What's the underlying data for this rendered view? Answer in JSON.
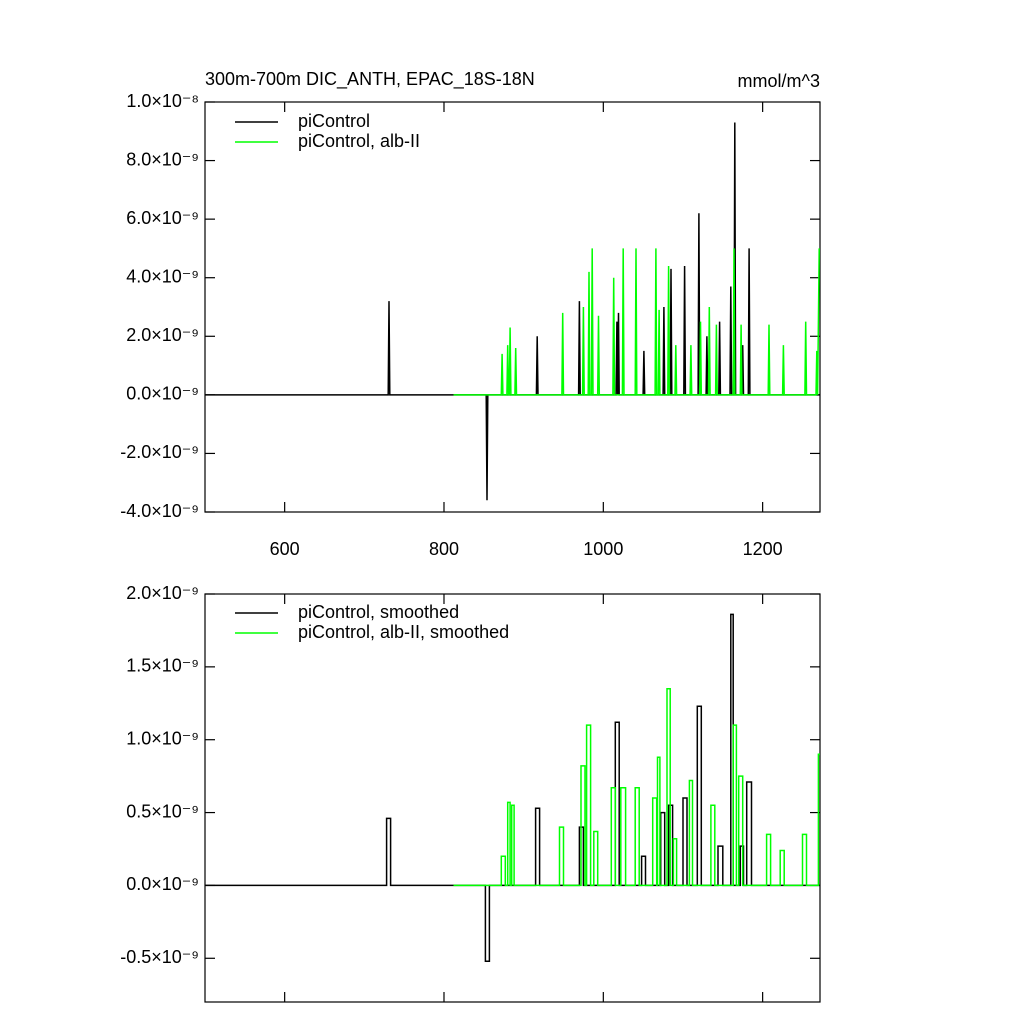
{
  "chart_data": [
    {
      "type": "line",
      "title": "300m-700m DIC_ANTH, EPAC_18S-18N",
      "units": "mmol/m^3",
      "xlim": [
        500,
        1272
      ],
      "xticks": [
        600,
        800,
        1000,
        1200
      ],
      "xtick_labels": true,
      "ylim": [
        -4e-09,
        1e-08
      ],
      "yticks": [
        {
          "value": 1e-08,
          "label": "1.0×10⁻⁸"
        },
        {
          "value": 8e-09,
          "label": "8.0×10⁻⁹"
        },
        {
          "value": 6e-09,
          "label": "6.0×10⁻⁹"
        },
        {
          "value": 4e-09,
          "label": "4.0×10⁻⁹"
        },
        {
          "value": 2e-09,
          "label": "2.0×10⁻⁹"
        },
        {
          "value": 0,
          "label": "0.0×10⁻⁹"
        },
        {
          "value": -2e-09,
          "label": "-2.0×10⁻⁹"
        },
        {
          "value": -4e-09,
          "label": "-4.0×10⁻⁹"
        }
      ],
      "series": [
        {
          "name": "piControl",
          "color": "#000000",
          "x": [
            500,
            730,
            731,
            732,
            853,
            854,
            855,
            916,
            917,
            918,
            969,
            970,
            971,
            1016,
            1017,
            1018,
            1019,
            1020,
            1050,
            1051,
            1052,
            1075,
            1076,
            1077,
            1084,
            1085,
            1086,
            1101,
            1102,
            1103,
            1119,
            1120,
            1121,
            1129,
            1130,
            1131,
            1145,
            1146,
            1147,
            1159,
            1160,
            1161,
            1164,
            1165,
            1166,
            1174,
            1175,
            1176,
            1182,
            1183,
            1184,
            1272
          ],
          "values": [
            0,
            0,
            3.2e-09,
            0,
            0,
            -3.6e-09,
            0,
            0,
            2e-09,
            0,
            0,
            3.2e-09,
            0,
            0,
            2.5e-09,
            0,
            2.8e-09,
            0,
            0,
            1.5e-09,
            0,
            0,
            3e-09,
            0,
            0,
            4.3e-09,
            0,
            0,
            4.4e-09,
            0,
            0,
            6.2e-09,
            0,
            0,
            2e-09,
            0,
            0,
            2.5e-09,
            0,
            0,
            3.7e-09,
            0,
            0,
            9.3e-09,
            0,
            0,
            1.7e-09,
            0,
            0,
            5e-09,
            0,
            0
          ]
        },
        {
          "name": "piControl, alb-II",
          "color": "#00ff00",
          "x": [
            812,
            872,
            873,
            874,
            879,
            880,
            881,
            882,
            883,
            884,
            889,
            890,
            891,
            948,
            949,
            950,
            974,
            975,
            976,
            981,
            982,
            983,
            985,
            986,
            987,
            993,
            994,
            995,
            1012,
            1013,
            1014,
            1024,
            1025,
            1026,
            1040,
            1041,
            1042,
            1065,
            1066,
            1067,
            1069,
            1070,
            1071,
            1081,
            1082,
            1083,
            1090,
            1091,
            1092,
            1109,
            1110,
            1111,
            1121,
            1122,
            1123,
            1132,
            1133,
            1134,
            1141,
            1142,
            1143,
            1163,
            1164,
            1165,
            1172,
            1173,
            1174,
            1207,
            1208,
            1209,
            1225,
            1226,
            1227,
            1253,
            1254,
            1255,
            1267,
            1268,
            1269,
            1271
          ],
          "values": [
            0,
            0,
            1.4e-09,
            0,
            0,
            1.7e-09,
            0,
            0,
            2.3e-09,
            0,
            0,
            1.6e-09,
            0,
            0,
            2.8e-09,
            0,
            0,
            3e-09,
            0,
            0,
            4.2e-09,
            0,
            0,
            5e-09,
            0,
            0,
            2.7e-09,
            0,
            0,
            4e-09,
            0,
            0,
            5e-09,
            0,
            0,
            5e-09,
            0,
            0,
            5e-09,
            0,
            0,
            2.9e-09,
            0,
            0,
            4.4e-09,
            0,
            0,
            1.7e-09,
            0,
            0,
            1.7e-09,
            0,
            0,
            2.5e-09,
            0,
            0,
            3e-09,
            0,
            0,
            2.4e-09,
            0,
            0,
            5e-09,
            0,
            0,
            2.4e-09,
            0,
            0,
            2.4e-09,
            0,
            0,
            1.7e-09,
            0,
            0,
            2.5e-09,
            0,
            0,
            1.5e-09,
            0,
            5e-09
          ]
        }
      ]
    },
    {
      "type": "line",
      "xlim": [
        500,
        1272
      ],
      "xticks": [
        600,
        800,
        1000,
        1200
      ],
      "xtick_labels": false,
      "ylim": [
        -8e-10,
        2e-09
      ],
      "yticks": [
        {
          "value": 2e-09,
          "label": "2.0×10⁻⁹"
        },
        {
          "value": 1.5e-09,
          "label": "1.5×10⁻⁹"
        },
        {
          "value": 1e-09,
          "label": "1.0×10⁻⁹"
        },
        {
          "value": 5e-10,
          "label": "0.5×10⁻⁹"
        },
        {
          "value": 0,
          "label": "0.0×10⁻⁹"
        },
        {
          "value": -5e-10,
          "label": "-0.5×10⁻⁹"
        }
      ],
      "series": [
        {
          "name": "piControl, smoothed",
          "color": "#000000",
          "x": [
            500,
            728,
            728,
            733,
            733,
            852,
            852,
            857,
            857,
            915,
            915,
            920,
            920,
            970,
            970,
            975,
            975,
            1015,
            1015,
            1020,
            1020,
            1048,
            1048,
            1053,
            1053,
            1072,
            1072,
            1077,
            1077,
            1082,
            1082,
            1087,
            1087,
            1100,
            1100,
            1105,
            1105,
            1118,
            1118,
            1123,
            1123,
            1144,
            1144,
            1150,
            1150,
            1160,
            1160,
            1163,
            1163,
            1172,
            1172,
            1176,
            1176,
            1180,
            1180,
            1186,
            1186,
            1272
          ],
          "values": [
            0,
            0,
            4.6e-10,
            4.6e-10,
            0,
            0,
            -5.2e-10,
            -5.2e-10,
            0,
            0,
            5.3e-10,
            5.3e-10,
            0,
            0,
            4e-10,
            4e-10,
            0,
            0,
            1.12e-09,
            1.12e-09,
            0,
            0,
            2e-10,
            2e-10,
            0,
            0,
            5e-10,
            5e-10,
            0,
            0,
            5.5e-10,
            5.5e-10,
            0,
            0,
            6e-10,
            6e-10,
            0,
            0,
            1.23e-09,
            1.23e-09,
            0,
            0,
            2.7e-10,
            2.7e-10,
            0,
            0,
            1.86e-09,
            1.86e-09,
            0,
            0,
            2.7e-10,
            2.7e-10,
            0,
            0,
            7.1e-10,
            7.1e-10,
            0,
            0
          ]
        },
        {
          "name": "piControl, alb-II, smoothed",
          "color": "#00ff00",
          "x": [
            812,
            872,
            872,
            877,
            877,
            880,
            880,
            883,
            883,
            885,
            885,
            888,
            888,
            945,
            945,
            950,
            950,
            972,
            972,
            977,
            977,
            979,
            979,
            984,
            984,
            988,
            988,
            993,
            993,
            1010,
            1010,
            1015,
            1015,
            1022,
            1022,
            1028,
            1028,
            1040,
            1040,
            1045,
            1045,
            1062,
            1062,
            1067,
            1067,
            1068,
            1068,
            1071,
            1071,
            1080,
            1080,
            1084,
            1084,
            1088,
            1088,
            1092,
            1092,
            1108,
            1108,
            1112,
            1112,
            1135,
            1135,
            1140,
            1140,
            1163,
            1163,
            1167,
            1167,
            1170,
            1170,
            1175,
            1175,
            1205,
            1205,
            1210,
            1210,
            1222,
            1222,
            1227,
            1227,
            1250,
            1250,
            1255,
            1255,
            1270,
            1270,
            1272
          ],
          "values": [
            0,
            0,
            2e-10,
            2e-10,
            0,
            0,
            5.7e-10,
            5.7e-10,
            0,
            0,
            5.5e-10,
            5.5e-10,
            0,
            0,
            4e-10,
            4e-10,
            0,
            0,
            8.2e-10,
            8.2e-10,
            0,
            0,
            1.1e-09,
            1.1e-09,
            0,
            0,
            3.7e-10,
            3.7e-10,
            0,
            0,
            6.7e-10,
            6.7e-10,
            0,
            0,
            6.7e-10,
            6.7e-10,
            0,
            0,
            6.7e-10,
            6.7e-10,
            0,
            0,
            6e-10,
            6e-10,
            0,
            0,
            8.8e-10,
            8.8e-10,
            0,
            0,
            1.35e-09,
            1.35e-09,
            0,
            0,
            3.2e-10,
            3.2e-10,
            0,
            0,
            7.2e-10,
            7.2e-10,
            0,
            0,
            5.5e-10,
            5.5e-10,
            0,
            0,
            1.1e-09,
            1.1e-09,
            0,
            0,
            7.5e-10,
            7.5e-10,
            0,
            0,
            3.5e-10,
            3.5e-10,
            0,
            0,
            2.4e-10,
            2.4e-10,
            0,
            0,
            3.5e-10,
            3.5e-10,
            0,
            0,
            9e-10,
            9e-10
          ]
        }
      ]
    }
  ]
}
